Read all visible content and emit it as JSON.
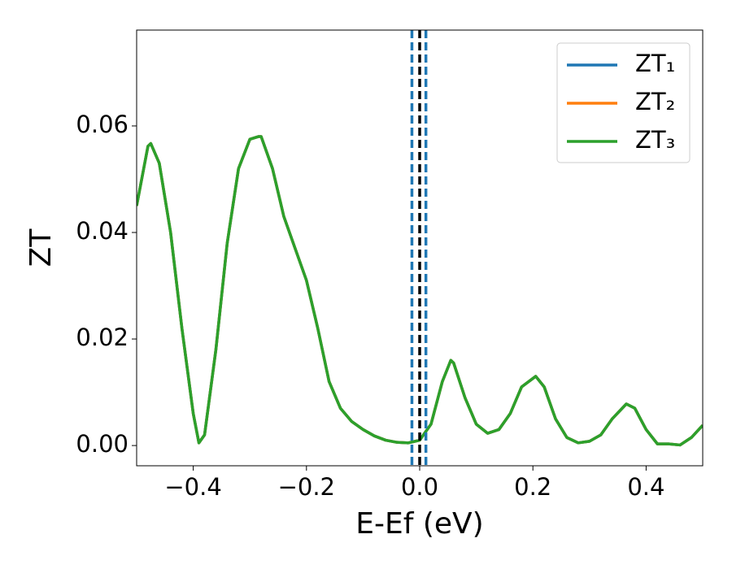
{
  "chart_data": {
    "type": "line",
    "x_label": "E-Ef (eV)",
    "y_label": "ZT",
    "x": [
      -0.5,
      -0.48,
      -0.475,
      -0.46,
      -0.44,
      -0.42,
      -0.4,
      -0.39,
      -0.38,
      -0.36,
      -0.34,
      -0.32,
      -0.3,
      -0.285,
      -0.28,
      -0.26,
      -0.24,
      -0.22,
      -0.2,
      -0.18,
      -0.16,
      -0.14,
      -0.12,
      -0.1,
      -0.08,
      -0.06,
      -0.04,
      -0.02,
      0.0,
      0.02,
      0.04,
      0.055,
      0.06,
      0.08,
      0.1,
      0.12,
      0.14,
      0.16,
      0.18,
      0.205,
      0.22,
      0.24,
      0.26,
      0.28,
      0.3,
      0.32,
      0.34,
      0.365,
      0.38,
      0.4,
      0.42,
      0.44,
      0.46,
      0.48,
      0.5
    ],
    "series": [
      {
        "name": "ZT₁",
        "color": "#1f77b4",
        "values": [
          0.045,
          0.0562,
          0.0567,
          0.053,
          0.04,
          0.022,
          0.006,
          0.0005,
          0.002,
          0.018,
          0.038,
          0.052,
          0.0575,
          0.058,
          0.058,
          0.052,
          0.043,
          0.037,
          0.031,
          0.022,
          0.012,
          0.007,
          0.0045,
          0.003,
          0.0018,
          0.001,
          0.0006,
          0.0005,
          0.001,
          0.004,
          0.012,
          0.016,
          0.0155,
          0.009,
          0.004,
          0.0023,
          0.003,
          0.006,
          0.011,
          0.013,
          0.011,
          0.005,
          0.0015,
          0.0005,
          0.0008,
          0.002,
          0.005,
          0.0078,
          0.007,
          0.003,
          0.0003,
          0.0003,
          0.0001,
          0.0015,
          0.0038
        ]
      },
      {
        "name": "ZT₂",
        "color": "#ff7f0e",
        "values": [
          0.045,
          0.0562,
          0.0567,
          0.053,
          0.04,
          0.022,
          0.006,
          0.0005,
          0.002,
          0.018,
          0.038,
          0.052,
          0.0575,
          0.058,
          0.058,
          0.052,
          0.043,
          0.037,
          0.031,
          0.022,
          0.012,
          0.007,
          0.0045,
          0.003,
          0.0018,
          0.001,
          0.0006,
          0.0005,
          0.001,
          0.004,
          0.012,
          0.016,
          0.0155,
          0.009,
          0.004,
          0.0023,
          0.003,
          0.006,
          0.011,
          0.013,
          0.011,
          0.005,
          0.0015,
          0.0005,
          0.0008,
          0.002,
          0.005,
          0.0078,
          0.007,
          0.003,
          0.0003,
          0.0003,
          0.0001,
          0.0015,
          0.0038
        ]
      },
      {
        "name": "ZT₃",
        "color": "#2ca02c",
        "values": [
          0.045,
          0.0562,
          0.0567,
          0.053,
          0.04,
          0.022,
          0.006,
          0.0005,
          0.002,
          0.018,
          0.038,
          0.052,
          0.0575,
          0.058,
          0.058,
          0.052,
          0.043,
          0.037,
          0.031,
          0.022,
          0.012,
          0.007,
          0.0045,
          0.003,
          0.0018,
          0.001,
          0.0006,
          0.0005,
          0.001,
          0.004,
          0.012,
          0.016,
          0.0155,
          0.009,
          0.004,
          0.0023,
          0.003,
          0.006,
          0.011,
          0.013,
          0.011,
          0.005,
          0.0015,
          0.0005,
          0.0008,
          0.002,
          0.005,
          0.0078,
          0.007,
          0.003,
          0.0003,
          0.0003,
          0.0001,
          0.0015,
          0.0038
        ]
      }
    ],
    "vlines": [
      {
        "x": -0.0137,
        "color": "#1f77b4"
      },
      {
        "x": 0.011,
        "color": "#1f77b4"
      },
      {
        "x": 0,
        "color": "#000000"
      }
    ],
    "xlim": [
      -0.5,
      0.5
    ],
    "xticks": [
      {
        "value": -0.4,
        "label": "−0.4"
      },
      {
        "value": -0.2,
        "label": "−0.2"
      },
      {
        "value": 0.0,
        "label": "0.0"
      },
      0.2,
      0.4
    ],
    "ylim": [
      -0.0038,
      0.078
    ],
    "yticks": [
      {
        "value": 0,
        "label": "0.00"
      },
      {
        "value": 0.02,
        "label": "0.02"
      },
      {
        "value": 0.04,
        "label": "0.04"
      },
      {
        "value": 0.06,
        "label": "0.06"
      }
    ],
    "legend": "upper right",
    "grid": false
  }
}
